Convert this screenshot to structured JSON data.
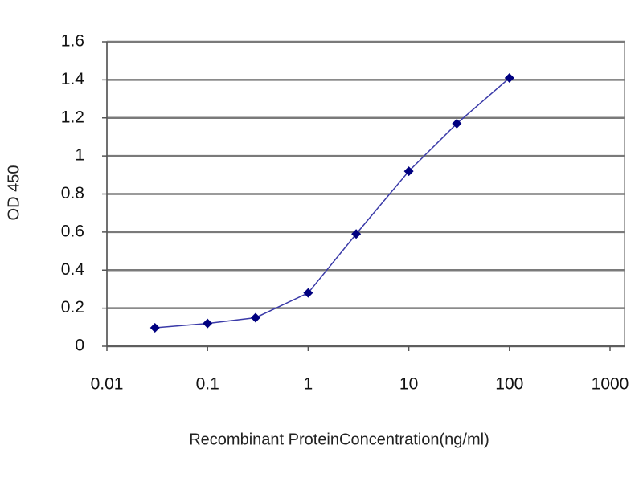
{
  "chart_data": {
    "type": "line",
    "x_label": "Recombinant ProteinConcentration(ng/ml)",
    "y_label": "OD 450",
    "x": [
      0.03,
      0.1,
      0.3,
      1,
      3,
      10,
      30,
      100
    ],
    "series": [
      {
        "color": "#3a3aa8",
        "marker_color": "#000080",
        "values": [
          0.097,
          0.12,
          0.15,
          0.28,
          0.59,
          0.92,
          1.17,
          1.41
        ]
      }
    ],
    "xscale": "log",
    "xlim": [
      0.01,
      1000
    ],
    "xticks": [
      0.01,
      0.1,
      1,
      10,
      100,
      1000
    ],
    "ylim": [
      0,
      1.6
    ],
    "yticks": [
      0,
      0.2,
      0.4,
      0.6,
      0.8,
      1,
      1.2,
      1.4,
      1.6
    ],
    "grid": true
  }
}
